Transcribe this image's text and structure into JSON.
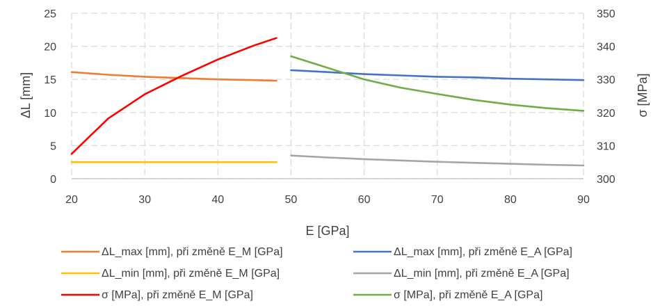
{
  "chart_data": {
    "type": "line",
    "xlabel": "E [GPa]",
    "ylabel_left": "ΔL [mm]",
    "ylabel_right": "σ [MPa]",
    "xlim": [
      20,
      90
    ],
    "ylim_left": [
      0,
      25
    ],
    "ylim_right": [
      300,
      350
    ],
    "x_ticks": [
      "20",
      "30",
      "40",
      "50",
      "60",
      "70",
      "80",
      "90"
    ],
    "y_left_ticks": [
      "0",
      "5",
      "10",
      "15",
      "20",
      "25"
    ],
    "y_right_ticks": [
      "300",
      "310",
      "320",
      "330",
      "340",
      "350"
    ],
    "grid": true,
    "legend_position": "bottom",
    "series": [
      {
        "name": "ΔL_max [mm], při změně E_M [GPa]",
        "axis": "left",
        "color": "#ED7D31",
        "x": [
          20,
          25,
          30,
          35,
          40,
          45,
          48
        ],
        "y": [
          16.1,
          15.7,
          15.4,
          15.2,
          15.0,
          14.9,
          14.8
        ]
      },
      {
        "name": "ΔL_max [mm], při změně E_A [GPa]",
        "axis": "left",
        "color": "#4472C4",
        "x": [
          50,
          55,
          60,
          65,
          70,
          75,
          80,
          85,
          90
        ],
        "y": [
          16.4,
          16.1,
          15.8,
          15.6,
          15.4,
          15.3,
          15.1,
          15.0,
          14.9
        ]
      },
      {
        "name": "ΔL_min [mm], při změně E_M [GPa]",
        "axis": "left",
        "color": "#FFC000",
        "x": [
          20,
          30,
          40,
          48
        ],
        "y": [
          2.5,
          2.5,
          2.5,
          2.5
        ]
      },
      {
        "name": "ΔL_min [mm], při změně E_A [GPa]",
        "axis": "left",
        "color": "#A5A5A5",
        "x": [
          50,
          55,
          60,
          65,
          70,
          75,
          80,
          85,
          90
        ],
        "y": [
          3.5,
          3.2,
          2.95,
          2.75,
          2.55,
          2.4,
          2.25,
          2.1,
          2.0
        ]
      },
      {
        "name": "σ [MPa], při změně E_M [GPa]",
        "axis": "right",
        "color": "#FF0000",
        "x": [
          20,
          25,
          30,
          35,
          40,
          45,
          48
        ],
        "y": [
          307.5,
          318.2,
          325.5,
          331.0,
          336.0,
          340.3,
          342.5
        ]
      },
      {
        "name": "σ [MPa], při změně E_A [GPa]",
        "axis": "right",
        "color": "#70AD47",
        "x": [
          50,
          55,
          60,
          65,
          70,
          75,
          80,
          85,
          90
        ],
        "y": [
          337.0,
          333.5,
          330.0,
          327.5,
          325.6,
          323.8,
          322.4,
          321.3,
          320.5
        ]
      }
    ]
  }
}
